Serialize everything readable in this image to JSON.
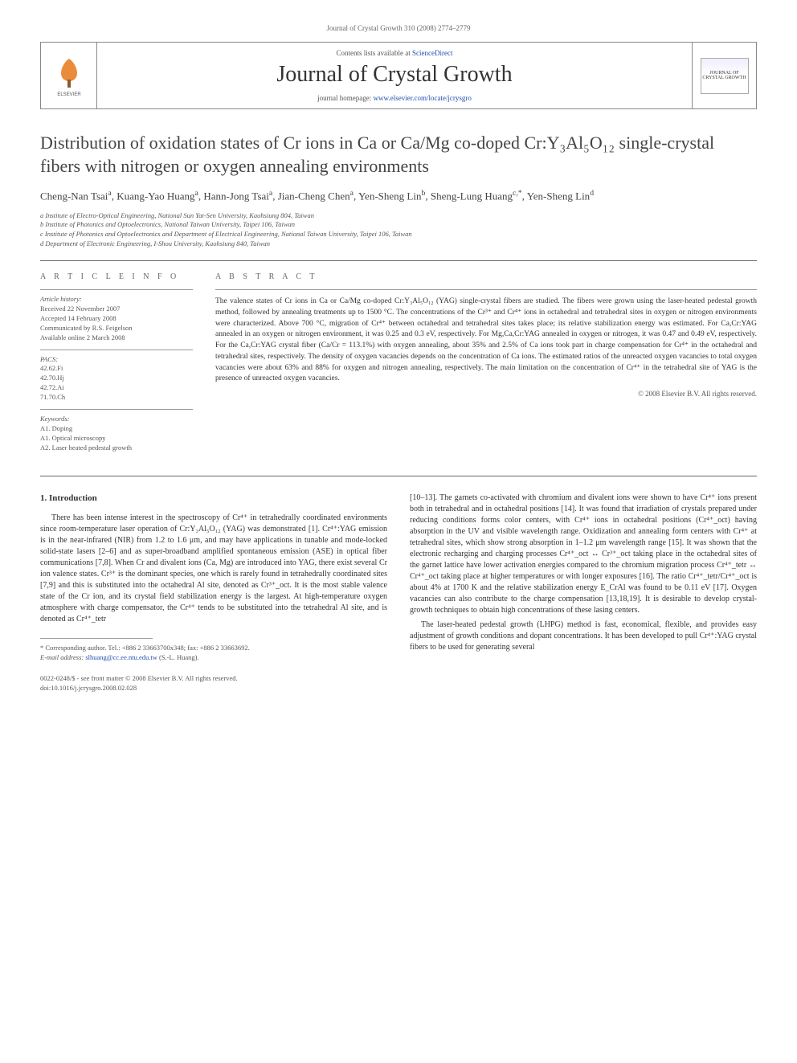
{
  "header": {
    "citation": "Journal of Crystal Growth 310 (2008) 2774–2779",
    "contents_line_prefix": "Contents lists available at ",
    "contents_link": "ScienceDirect",
    "journal_name": "Journal of Crystal Growth",
    "homepage_prefix": "journal homepage: ",
    "homepage_link": "www.elsevier.com/locate/jcrysgro",
    "publisher_logo_label": "ELSEVIER",
    "cover_label": "JOURNAL OF CRYSTAL GROWTH"
  },
  "title": "Distribution of oxidation states of Cr ions in Ca or Ca/Mg co-doped Cr:Y₃Al₅O₁₂ single-crystal fibers with nitrogen or oxygen annealing environments",
  "authors_html": "Cheng-Nan Tsai<sup>a</sup>, Kuang-Yao Huang<sup>a</sup>, Hann-Jong Tsai<sup>a</sup>, Jian-Cheng Chen<sup>a</sup>, Yen-Sheng Lin<sup>b</sup>, Sheng-Lung Huang<sup>c,*</sup>, Yen-Sheng Lin<sup>d</sup>",
  "affiliations": [
    "a Institute of Electro-Optical Engineering, National Sun Yat-Sen University, Kaohsiung 804, Taiwan",
    "b Institute of Photonics and Optoelectronics, National Taiwan University, Taipei 106, Taiwan",
    "c Institute of Photonics and Optoelectronics and Department of Electrical Engineering, National Taiwan University, Taipei 106, Taiwan",
    "d Department of Electronic Engineering, I-Shou University, Kaohsiung 840, Taiwan"
  ],
  "article_info": {
    "heading": "A R T I C L E   I N F O",
    "history_label": "Article history:",
    "history": [
      "Received 22 November 2007",
      "Accepted 14 February 2008",
      "Communicated by R.S. Feigelson",
      "Available online 2 March 2008"
    ],
    "pacs_label": "PACS:",
    "pacs": [
      "42.62.Fi",
      "42.70.Hj",
      "42.72.Ai",
      "71.70.Ch"
    ],
    "keywords_label": "Keywords:",
    "keywords": [
      "A1. Doping",
      "A1. Optical microscopy",
      "A2. Laser heated pedestal growth"
    ]
  },
  "abstract": {
    "heading": "A B S T R A C T",
    "text": "The valence states of Cr ions in Ca or Ca/Mg co-doped Cr:Y₃Al₅O₁₂ (YAG) single-crystal fibers are studied. The fibers were grown using the laser-heated pedestal growth method, followed by annealing treatments up to 1500 °C. The concentrations of the Cr³⁺ and Cr⁴⁺ ions in octahedral and tetrahedral sites in oxygen or nitrogen environments were characterized. Above 700 °C, migration of Cr⁴⁺ between octahedral and tetrahedral sites takes place; its relative stabilization energy was estimated. For Ca,Cr:YAG annealed in an oxygen or nitrogen environment, it was 0.25 and 0.3 eV, respectively. For Mg,Ca,Cr:YAG annealed in oxygen or nitrogen, it was 0.47 and 0.49 eV, respectively. For the Ca,Cr:YAG crystal fiber (Ca/Cr = 113.1%) with oxygen annealing, about 35% and 2.5% of Ca ions took part in charge compensation for Cr⁴⁺ in the octahedral and tetrahedral sites, respectively. The density of oxygen vacancies depends on the concentration of Ca ions. The estimated ratios of the unreacted oxygen vacancies to total oxygen vacancies were about 63% and 88% for oxygen and nitrogen annealing, respectively. The main limitation on the concentration of Cr⁴⁺ in the tetrahedral site of YAG is the presence of unreacted oxygen vacancies.",
    "copyright": "© 2008 Elsevier B.V. All rights reserved."
  },
  "body": {
    "section_heading": "1. Introduction",
    "left_col": "There has been intense interest in the spectroscopy of Cr⁴⁺ in tetrahedrally coordinated environments since room-temperature laser operation of Cr:Y₃Al₅O₁₂ (YAG) was demonstrated [1]. Cr⁴⁺:YAG emission is in the near-infrared (NIR) from 1.2 to 1.6 μm, and may have applications in tunable and mode-locked solid-state lasers [2–6] and as super-broadband amplified spontaneous emission (ASE) in optical fiber communications [7,8]. When Cr and divalent ions (Ca, Mg) are introduced into YAG, there exist several Cr ion valence states. Cr³⁺ is the dominant species, one which is rarely found in tetrahedrally coordinated sites [7,9] and this is substituted into the octahedral Al site, denoted as Cr³⁺_oct. It is the most stable valence state of the Cr ion, and its crystal field stabilization energy is the largest. At high-temperature oxygen atmosphere with charge compensator, the Cr⁴⁺ tends to be substituted into the tetrahedral Al site, and is denoted as Cr⁴⁺_tetr",
    "right_col_p1": "[10–13]. The garnets co-activated with chromium and divalent ions were shown to have Cr⁴⁺ ions present both in tetrahedral and in octahedral positions [14]. It was found that irradiation of crystals prepared under reducing conditions forms color centers, with Cr⁴⁺ ions in octahedral positions (Cr⁴⁺_oct) having absorption in the UV and visible wavelength range. Oxidization and annealing form centers with Cr⁴⁺ at tetrahedral sites, which show strong absorption in 1–1.2 μm wavelength range [15]. It was shown that the electronic recharging and charging processes Cr⁴⁺_oct ↔ Cr³⁺_oct taking place in the octahedral sites of the garnet lattice have lower activation energies compared to the chromium migration process Cr⁴⁺_tetr ↔ Cr⁴⁺_oct taking place at higher temperatures or with longer exposures [16]. The ratio Cr⁴⁺_tetr/Cr⁴⁺_oct is about 4% at 1700 K and the relative stabilization energy E_CrAl was found to be 0.11 eV [17]. Oxygen vacancies can also contribute to the charge compensation [13,18,19]. It is desirable to develop crystal-growth techniques to obtain high concentrations of these lasing centers.",
    "right_col_p2": "The laser-heated pedestal growth (LHPG) method is fast, economical, flexible, and provides easy adjustment of growth conditions and dopant concentrations. It has been developed to pull Cr⁴⁺:YAG crystal fibers to be used for generating several"
  },
  "footer": {
    "corresponding": "* Corresponding author. Tel.: +886 2 33663700x348; fax: +886 2 33663692.",
    "email_label": "E-mail address: ",
    "email": "slhuang@cc.ee.ntu.edu.tw",
    "email_suffix": " (S.-L. Huang).",
    "rights_line1": "0022-0248/$ - see front matter © 2008 Elsevier B.V. All rights reserved.",
    "doi": "doi:10.1016/j.jcrysgro.2008.02.028"
  },
  "colors": {
    "link": "#2050b0",
    "text": "#333333",
    "muted": "#666666",
    "rule": "#666666"
  }
}
